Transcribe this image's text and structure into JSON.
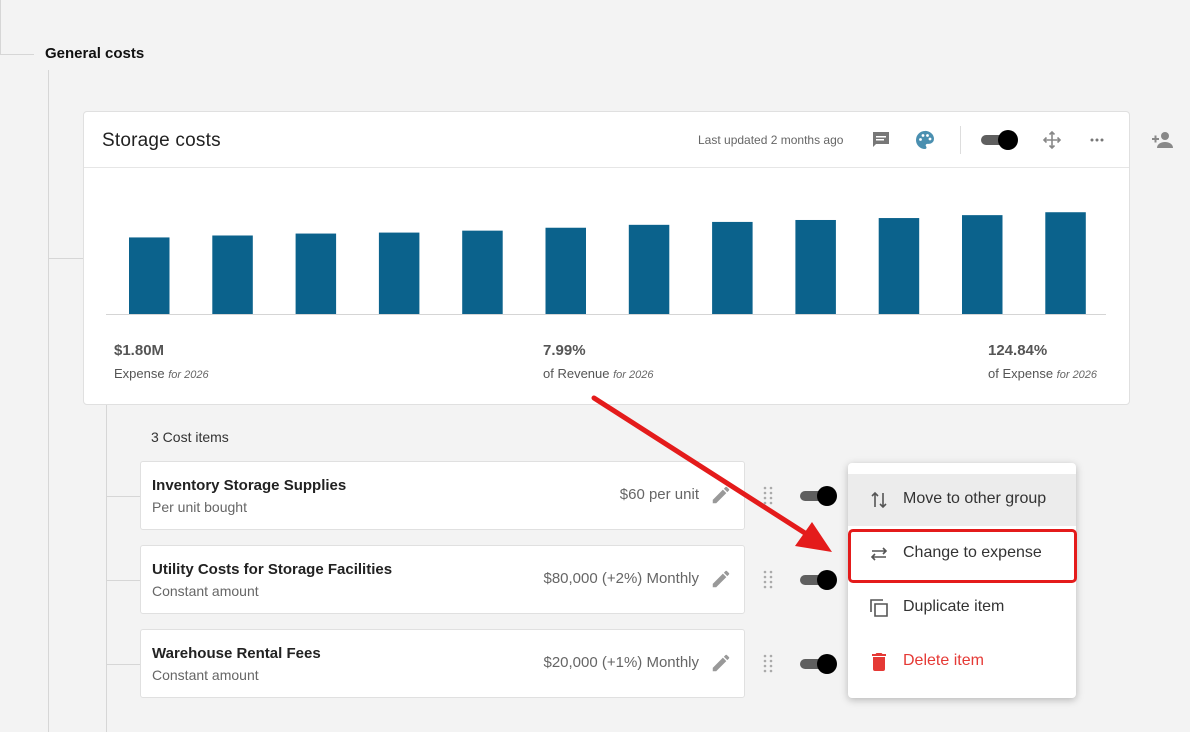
{
  "group": {
    "title": "General costs"
  },
  "card": {
    "title": "Storage costs",
    "last_updated": "Last updated 2 months ago",
    "icons": [
      "comment-icon",
      "palette-icon",
      "toggle",
      "move-icon",
      "more-icon"
    ]
  },
  "add_user_icon": "add-user-icon",
  "chart_data": {
    "type": "bar",
    "values": [
      79,
      81,
      83,
      84,
      86,
      89,
      92,
      95,
      97,
      99,
      102,
      105
    ],
    "ylim": [
      0,
      130
    ],
    "color": "#0b628c",
    "grid": false
  },
  "metrics": [
    {
      "value": "$1.80M",
      "label": "Expense",
      "qualifier": "for 2026"
    },
    {
      "value": "7.99%",
      "label": "of Revenue",
      "qualifier": "for 2026"
    },
    {
      "value": "124.84%",
      "label": "of Expense",
      "qualifier": "for 2026"
    }
  ],
  "items_count": "3 Cost items",
  "items": [
    {
      "name": "Inventory Storage Supplies",
      "sub": "Per unit bought",
      "amount": "$60 per unit"
    },
    {
      "name": "Utility Costs for Storage Facilities",
      "sub": "Constant amount",
      "amount": "$80,000 (+2%) Monthly"
    },
    {
      "name": "Warehouse Rental Fees",
      "sub": "Constant amount",
      "amount": "$20,000 (+1%) Monthly"
    }
  ],
  "menu": [
    {
      "label": "Move to other group",
      "icon": "swap-vertical-icon"
    },
    {
      "label": "Change to expense",
      "icon": "swap-horizontal-icon"
    },
    {
      "label": "Duplicate item",
      "icon": "duplicate-icon"
    },
    {
      "label": "Delete item",
      "icon": "trash-icon"
    }
  ],
  "colors": {
    "bar": "#0b628c",
    "danger": "#e53935",
    "annotation": "#e41b1b",
    "accent_icon": "#4a8fb0"
  }
}
